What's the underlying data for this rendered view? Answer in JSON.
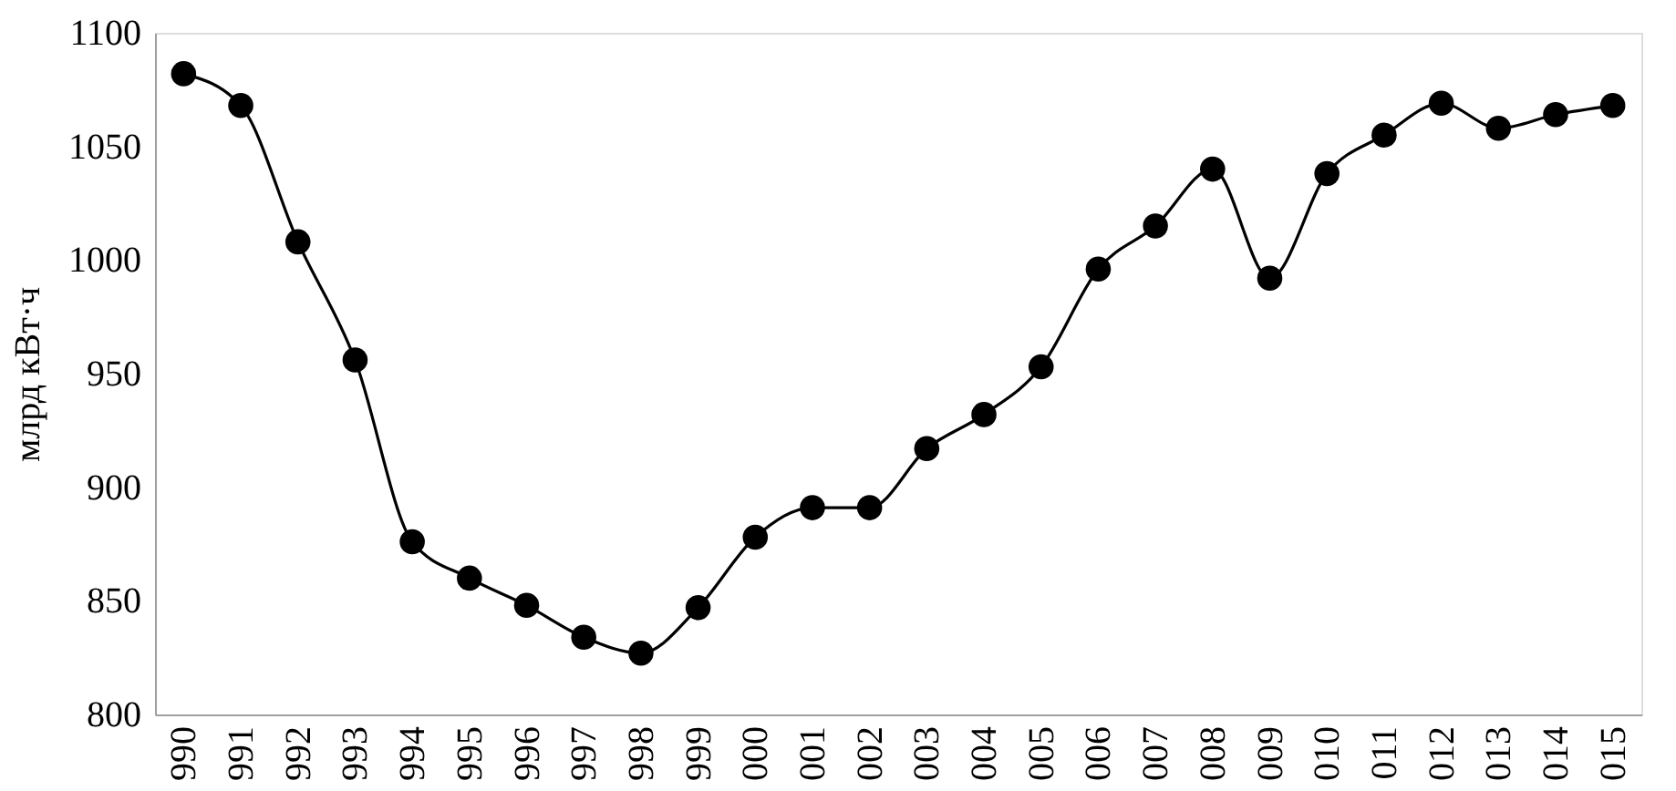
{
  "chart_data": {
    "type": "line",
    "ylabel": "млрд кВт·ч",
    "categories": [
      "990",
      "991",
      "992",
      "993",
      "994",
      "995",
      "996",
      "997",
      "998",
      "999",
      "000",
      "001",
      "002",
      "003",
      "004",
      "005",
      "006",
      "007",
      "008",
      "009",
      "010",
      "011",
      "012",
      "013",
      "014",
      "015"
    ],
    "series": [
      {
        "color": "#000000",
        "values": [
          1082,
          1068,
          1008,
          956,
          876,
          860,
          848,
          834,
          827,
          847,
          878,
          891,
          891,
          917,
          932,
          953,
          996,
          1015,
          1040,
          992,
          1038,
          1055,
          1069,
          1058,
          1064,
          1068
        ]
      }
    ],
    "ylim": [
      800,
      1100
    ],
    "yticks": [
      800,
      850,
      900,
      950,
      1000,
      1050,
      1100
    ],
    "marker": "circle",
    "line_style": "solid",
    "grid": false
  }
}
